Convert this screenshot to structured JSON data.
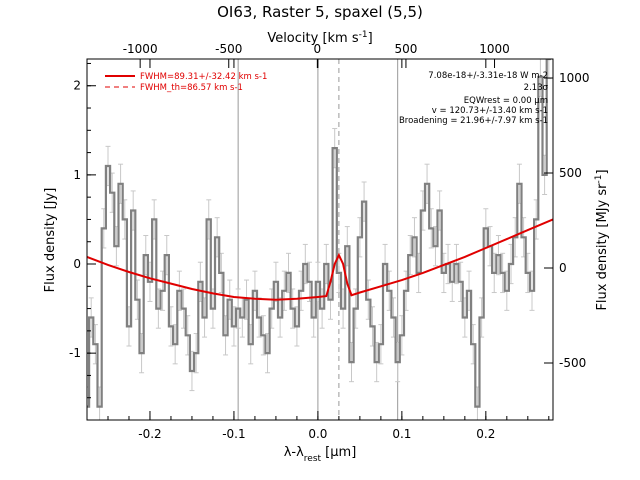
{
  "chart_data": {
    "type": "line",
    "title": "OI63, Raster 5, spaxel (5,5)",
    "xlabel": "λ-λrest [μm]",
    "ylabel": "Flux density [Jy]",
    "x2label": "Velocity [km s-1]",
    "y2label": "Flux density [MJy sr-1]",
    "xlim": [
      -0.275,
      0.28
    ],
    "ylim": [
      -1.75,
      2.3
    ],
    "y2lim": [
      -800,
      1100
    ],
    "x2lim": [
      -1300,
      1330
    ],
    "xticks": [
      "-0.2",
      "-0.1",
      "0.0",
      "0.1",
      "0.2"
    ],
    "yticks": [
      "-1",
      "0",
      "1",
      "2"
    ],
    "y2ticks": [
      "-500",
      "0",
      "500",
      "1000"
    ],
    "x2ticks": [
      "-1000",
      "-500",
      "0",
      "500",
      "1000"
    ],
    "vlines_solid": [
      -0.095,
      0.0,
      0.095
    ],
    "vline_dashed": 0.025,
    "legend": {
      "position": "top-left",
      "fit_label": "FWHM=89.31+/-32.42 km s-1",
      "th_label": "FWHM_th=86.57 km s-1"
    },
    "annotations": {
      "line1": "7.08e-18+/-3.31e-18 W m-2",
      "line2": "2.13σ",
      "line3": "EQWrest = 0.00 μm",
      "line4": "v = 120.73+/-13.40 km s-1",
      "line5": "Broadening = 21.96+/-7.97 km s-1"
    },
    "series": [
      {
        "color": "#808080",
        "style": "histogram-with-errorbars",
        "x": [
          -0.275,
          -0.27,
          -0.265,
          -0.26,
          -0.255,
          -0.25,
          -0.245,
          -0.24,
          -0.235,
          -0.23,
          -0.225,
          -0.22,
          -0.215,
          -0.21,
          -0.205,
          -0.2,
          -0.195,
          -0.19,
          -0.185,
          -0.18,
          -0.175,
          -0.17,
          -0.165,
          -0.16,
          -0.155,
          -0.15,
          -0.145,
          -0.14,
          -0.135,
          -0.13,
          -0.125,
          -0.12,
          -0.115,
          -0.11,
          -0.105,
          -0.1,
          -0.095,
          -0.09,
          -0.085,
          -0.08,
          -0.075,
          -0.07,
          -0.065,
          -0.06,
          -0.055,
          -0.05,
          -0.045,
          -0.04,
          -0.035,
          -0.03,
          -0.025,
          -0.02,
          -0.015,
          -0.01,
          -0.005,
          0.0,
          0.005,
          0.01,
          0.015,
          0.02,
          0.025,
          0.03,
          0.035,
          0.04,
          0.045,
          0.05,
          0.055,
          0.06,
          0.065,
          0.07,
          0.075,
          0.08,
          0.085,
          0.09,
          0.095,
          0.1,
          0.105,
          0.11,
          0.115,
          0.12,
          0.125,
          0.13,
          0.135,
          0.14,
          0.145,
          0.15,
          0.155,
          0.16,
          0.165,
          0.17,
          0.175,
          0.18,
          0.185,
          0.19,
          0.195,
          0.2,
          0.205,
          0.21,
          0.215,
          0.22,
          0.225,
          0.23,
          0.235,
          0.24,
          0.245,
          0.25,
          0.255,
          0.26,
          0.265,
          0.27,
          0.275
        ],
        "y": [
          -1.6,
          -0.6,
          -0.9,
          -1.6,
          0.4,
          1.1,
          0.8,
          0.2,
          0.9,
          0.5,
          -0.7,
          0.6,
          -0.4,
          -1.0,
          0.1,
          -0.2,
          0.5,
          -0.5,
          -0.3,
          0.1,
          -0.7,
          -0.9,
          -0.3,
          -0.5,
          -0.8,
          -1.2,
          -1.0,
          -0.2,
          -0.6,
          0.5,
          -0.5,
          0.3,
          -0.1,
          -0.8,
          -0.4,
          -0.7,
          -0.5,
          -0.6,
          -0.4,
          -0.9,
          -0.3,
          -0.6,
          -0.8,
          -1.0,
          -0.5,
          -0.2,
          -0.6,
          -0.3,
          -0.1,
          -0.5,
          -0.7,
          -0.3,
          0.0,
          -0.2,
          -0.6,
          -0.2,
          -0.5,
          0.0,
          -0.4,
          1.3,
          -0.1,
          -0.5,
          0.2,
          -1.1,
          -0.5,
          0.3,
          0.7,
          -0.4,
          -0.7,
          -1.1,
          -0.9,
          0.0,
          -0.3,
          -0.6,
          -1.1,
          -0.8,
          -0.3,
          0.1,
          0.3,
          -0.1,
          0.6,
          0.9,
          0.4,
          0.2,
          0.6,
          -0.1,
          0.0,
          -0.2,
          0.0,
          -0.2,
          -0.6,
          -0.3,
          -0.9,
          -1.6,
          -0.6,
          0.4,
          0.2,
          -0.1,
          0.1,
          -0.1,
          -0.3,
          0.0,
          0.3,
          0.9,
          0.3,
          -0.1,
          -0.3,
          0.5,
          2.1,
          1.0,
          2.3
        ],
        "yerr": 0.22
      },
      {
        "color": "#e00000",
        "style": "fit-line",
        "x": [
          -0.275,
          -0.25,
          -0.225,
          -0.2,
          -0.175,
          -0.15,
          -0.125,
          -0.1,
          -0.075,
          -0.05,
          -0.025,
          0.0,
          0.01,
          0.015,
          0.02,
          0.025,
          0.03,
          0.035,
          0.04,
          0.05,
          0.075,
          0.1,
          0.125,
          0.15,
          0.175,
          0.2,
          0.225,
          0.25,
          0.28
        ],
        "y": [
          0.08,
          -0.01,
          -0.09,
          -0.16,
          -0.22,
          -0.28,
          -0.33,
          -0.37,
          -0.39,
          -0.4,
          -0.39,
          -0.37,
          -0.36,
          -0.2,
          0.0,
          0.1,
          0.0,
          -0.22,
          -0.35,
          -0.32,
          -0.25,
          -0.18,
          -0.1,
          -0.01,
          0.08,
          0.18,
          0.28,
          0.38,
          0.5
        ]
      }
    ]
  }
}
